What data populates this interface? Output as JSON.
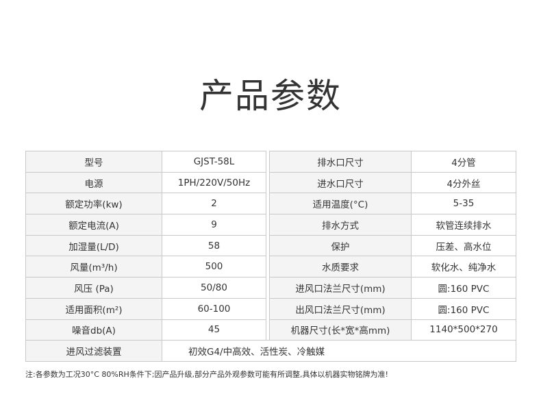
{
  "title": "产品参数",
  "rows": [
    {
      "l1": "型号",
      "v1": "GJST-58L",
      "l2": "排水口尺寸",
      "v2": "4分管"
    },
    {
      "l1": "电源",
      "v1": "1PH/220V/50Hz",
      "l2": "进水口尺寸",
      "v2": "4分外丝"
    },
    {
      "l1": "额定功率(kw)",
      "v1": "2",
      "l2": "适用温度(°C)",
      "v2": "5-35"
    },
    {
      "l1": "额定电流(A)",
      "v1": "9",
      "l2": "排水方式",
      "v2": "软管连续排水"
    },
    {
      "l1": "加湿量(L/D)",
      "v1": "58",
      "l2": "保护",
      "v2": "压差、高水位"
    },
    {
      "l1": "风量(m³/h)",
      "v1": "500",
      "l2": "水质要求",
      "v2": "软化水、纯净水"
    },
    {
      "l1": "风压 (Pa)",
      "v1": "50/80",
      "l2": "进风口法兰尺寸(mm)",
      "v2": "圆:160 PVC"
    },
    {
      "l1": "适用面积(m²)",
      "v1": "60-100",
      "l2": "出风口法兰尺寸(mm)",
      "v2": "圆:160 PVC"
    },
    {
      "l1": "噪音db(A)",
      "v1": "45",
      "l2": "机器尺寸(长*宽*高mm)",
      "v2": "1140*500*270"
    }
  ],
  "filter": {
    "label": "进风过滤装置",
    "value": "初效G4/中高效、活性炭、冷触媒"
  },
  "note": "注:各参数为工况30°C  80%RH条件下;因产品升级,部分产品外观参数可能有所调整,具体以机器实物铭牌为准!"
}
